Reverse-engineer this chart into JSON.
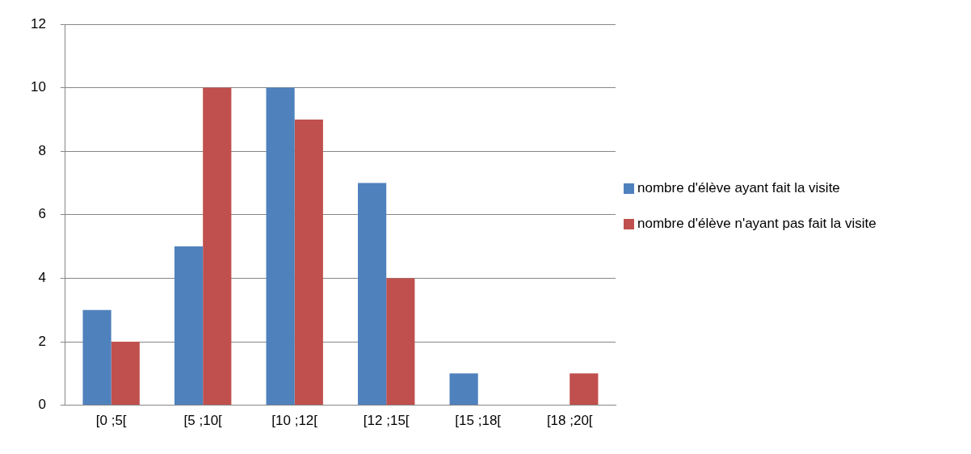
{
  "chart_data": {
    "type": "bar",
    "categories": [
      "[0 ;5[",
      "[5 ;10[",
      "[10 ;12[",
      "[12 ;15[",
      "[15 ;18[",
      "[18 ;20["
    ],
    "series": [
      {
        "name": "nombre d'élève ayant fait la visite",
        "color": "#4f81bd",
        "values": [
          3,
          5,
          10,
          7,
          1,
          0
        ]
      },
      {
        "name": "nombre d'élève n'ayant pas fait la visite",
        "color": "#c0504d",
        "values": [
          2,
          10,
          9,
          4,
          0,
          1
        ]
      }
    ],
    "ylim": [
      0,
      12
    ],
    "yticks": [
      0,
      2,
      4,
      6,
      8,
      10,
      12
    ],
    "grid": "y",
    "legend": "right"
  }
}
